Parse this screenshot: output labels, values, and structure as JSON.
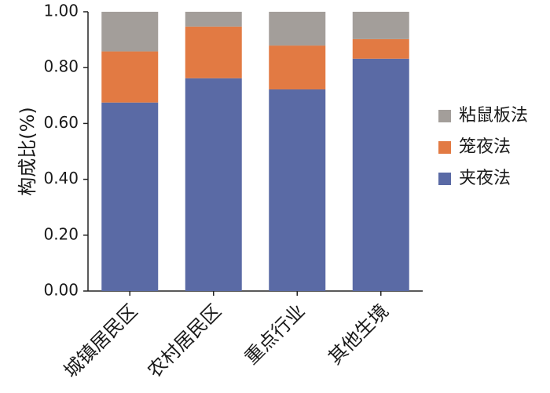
{
  "chart_data": {
    "type": "bar",
    "stacked": true,
    "title": "",
    "xlabel": "",
    "ylabel": "构成比(%)",
    "ylim": [
      0,
      1.0
    ],
    "yticks": [
      "0.00",
      "0.20",
      "0.40",
      "0.60",
      "0.80",
      "1.00"
    ],
    "categories": [
      "城镇居民区",
      "农村居民区",
      "重点行业",
      "其他生境"
    ],
    "series": [
      {
        "name": "夹夜法",
        "color": "#5a6aa5",
        "values": [
          0.675,
          0.762,
          0.722,
          0.832
        ]
      },
      {
        "name": "笼夜法",
        "color": "#e27a43",
        "values": [
          0.183,
          0.185,
          0.157,
          0.07
        ]
      },
      {
        "name": "粘鼠板法",
        "color": "#a39e9a",
        "values": [
          0.142,
          0.053,
          0.121,
          0.098
        ]
      }
    ],
    "legend": {
      "position": "right",
      "order": [
        "粘鼠板法",
        "笼夜法",
        "夹夜法"
      ]
    },
    "grid": false
  }
}
